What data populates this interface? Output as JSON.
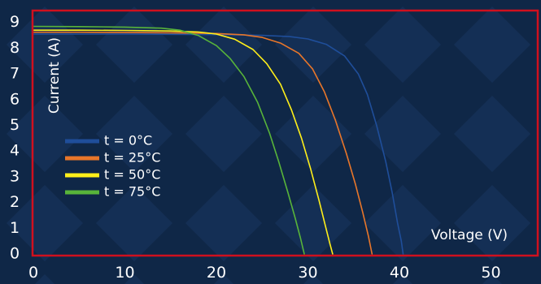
{
  "chart_data": {
    "type": "line",
    "title": "",
    "xlabel": "Voltage (V)",
    "ylabel": "Current (A)",
    "xlim": [
      0,
      55
    ],
    "ylim": [
      0,
      9
    ],
    "x_ticks": [
      "0",
      "10",
      "20",
      "30",
      "40",
      "50"
    ],
    "y_ticks": [
      "0",
      "1",
      "2",
      "3",
      "4",
      "5",
      "6",
      "7",
      "8",
      "9"
    ],
    "legend_position": "left",
    "grid": false,
    "series": [
      {
        "name": "t = 0°C",
        "color": "#1f4e9a",
        "points": [
          [
            0,
            8.55
          ],
          [
            5,
            8.55
          ],
          [
            10,
            8.55
          ],
          [
            15,
            8.54
          ],
          [
            20,
            8.53
          ],
          [
            25,
            8.5
          ],
          [
            28,
            8.45
          ],
          [
            30,
            8.36
          ],
          [
            32,
            8.15
          ],
          [
            34,
            7.7
          ],
          [
            35.5,
            7.0
          ],
          [
            36.5,
            6.2
          ],
          [
            37.5,
            5.0
          ],
          [
            38.5,
            3.6
          ],
          [
            39.2,
            2.4
          ],
          [
            39.8,
            1.2
          ],
          [
            40.2,
            0.5
          ],
          [
            40.4,
            0
          ]
        ]
      },
      {
        "name": "t = 25°C",
        "color": "#e8762a",
        "points": [
          [
            0,
            8.62
          ],
          [
            5,
            8.62
          ],
          [
            10,
            8.61
          ],
          [
            15,
            8.6
          ],
          [
            20,
            8.57
          ],
          [
            23,
            8.52
          ],
          [
            25,
            8.42
          ],
          [
            27,
            8.2
          ],
          [
            29,
            7.8
          ],
          [
            30.5,
            7.2
          ],
          [
            31.8,
            6.3
          ],
          [
            33,
            5.2
          ],
          [
            34.2,
            3.9
          ],
          [
            35.2,
            2.7
          ],
          [
            36,
            1.6
          ],
          [
            36.6,
            0.7
          ],
          [
            37,
            0
          ]
        ]
      },
      {
        "name": "t = 50°C",
        "color": "#ffef1a",
        "points": [
          [
            0,
            8.7
          ],
          [
            5,
            8.7
          ],
          [
            10,
            8.69
          ],
          [
            15,
            8.67
          ],
          [
            18,
            8.63
          ],
          [
            20,
            8.55
          ],
          [
            22,
            8.35
          ],
          [
            24,
            7.95
          ],
          [
            25.5,
            7.4
          ],
          [
            27,
            6.6
          ],
          [
            28.2,
            5.6
          ],
          [
            29.3,
            4.5
          ],
          [
            30.3,
            3.3
          ],
          [
            31.2,
            2.1
          ],
          [
            31.9,
            1.1
          ],
          [
            32.4,
            0.4
          ],
          [
            32.7,
            0
          ]
        ]
      },
      {
        "name": "t = 75°C",
        "color": "#58b43a",
        "points": [
          [
            0,
            8.85
          ],
          [
            5,
            8.84
          ],
          [
            10,
            8.82
          ],
          [
            14,
            8.78
          ],
          [
            16,
            8.7
          ],
          [
            18,
            8.5
          ],
          [
            20,
            8.1
          ],
          [
            21.5,
            7.6
          ],
          [
            23,
            6.9
          ],
          [
            24.5,
            5.9
          ],
          [
            25.8,
            4.7
          ],
          [
            26.8,
            3.6
          ],
          [
            27.8,
            2.4
          ],
          [
            28.6,
            1.4
          ],
          [
            29.2,
            0.6
          ],
          [
            29.6,
            0
          ]
        ]
      }
    ]
  }
}
